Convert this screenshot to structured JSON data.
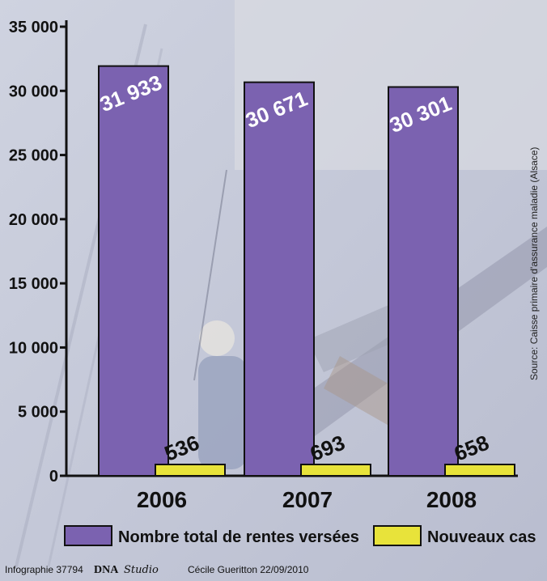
{
  "chart_data": {
    "type": "bar",
    "title": "",
    "xlabel": "",
    "ylabel": "",
    "ylim": [
      0,
      35000
    ],
    "yticks": [
      0,
      5000,
      10000,
      15000,
      20000,
      25000,
      30000,
      35000
    ],
    "ytick_labels": [
      "0",
      "5 000",
      "10 000",
      "15 000",
      "20 000",
      "25 000",
      "30 000",
      "35 000"
    ],
    "categories": [
      "2006",
      "2007",
      "2008"
    ],
    "series": [
      {
        "name": "Nombre total de rentes versées",
        "values": [
          31933,
          30671,
          30301
        ],
        "labels": [
          "31 933",
          "30 671",
          "30 301"
        ],
        "color": "#7b62b0"
      },
      {
        "name": "Nouveaux cas",
        "values": [
          536,
          693,
          658
        ],
        "labels": [
          "536",
          "693",
          "658"
        ],
        "color": "#e8e33a"
      }
    ],
    "legend_position": "bottom",
    "grid": false
  },
  "source": "Source: Caisse primaire d'assurance maladie (Alsace)",
  "credit": {
    "prefix": "Infographie 37794",
    "brand": "DNA",
    "brand_script": "Studio",
    "author": "Cécile Gueritton 22/09/2010"
  }
}
